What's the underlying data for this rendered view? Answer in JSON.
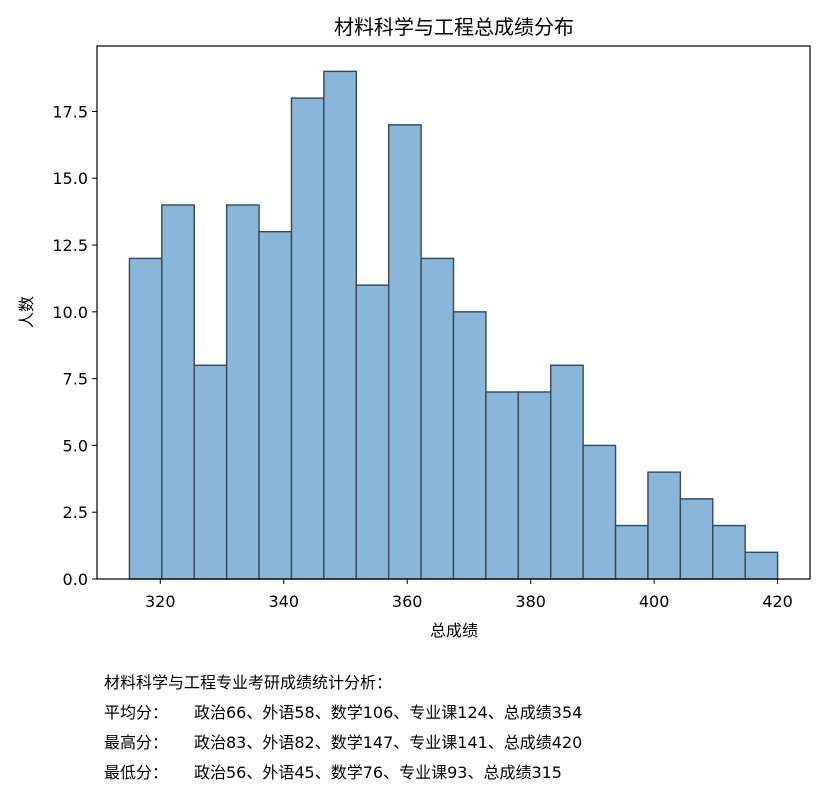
{
  "chart_data": {
    "type": "bar",
    "title": "材料科学与工程总成绩分布",
    "xlabel": "总成绩",
    "ylabel": "人数",
    "xlim": [
      309.75,
      425.25
    ],
    "ylim": [
      0,
      19.95
    ],
    "bin_start": 315,
    "bin_width": 5.25,
    "values": [
      12,
      14,
      8,
      14,
      13,
      18,
      19,
      11,
      17,
      12,
      10,
      7,
      7,
      8,
      5,
      2,
      4,
      3,
      2,
      1
    ],
    "x_ticks": [
      320,
      340,
      360,
      380,
      400,
      420
    ],
    "y_ticks": [
      0,
      2.5,
      5,
      7.5,
      10,
      12.5,
      15,
      17.5
    ],
    "x_tick_labels": [
      "320",
      "340",
      "360",
      "380",
      "400",
      "420"
    ],
    "y_tick_labels": [
      "0.0",
      "2.5",
      "5.0",
      "7.5",
      "10.0",
      "12.5",
      "15.0",
      "17.5"
    ],
    "bar_color": "#8ab6d9",
    "edge_color": "#3a4650",
    "grid": false
  },
  "summary": {
    "heading": "材料科学与工程专业考研成绩统计分析：",
    "rows": [
      {
        "label": "平均分：",
        "text": "政治66、外语58、数学106、专业课124、总成绩354"
      },
      {
        "label": "最高分：",
        "text": "政治83、外语82、数学147、专业课141、总成绩420"
      },
      {
        "label": "最低分：",
        "text": "政治56、外语45、数学76、专业课93、总成绩315"
      }
    ]
  }
}
